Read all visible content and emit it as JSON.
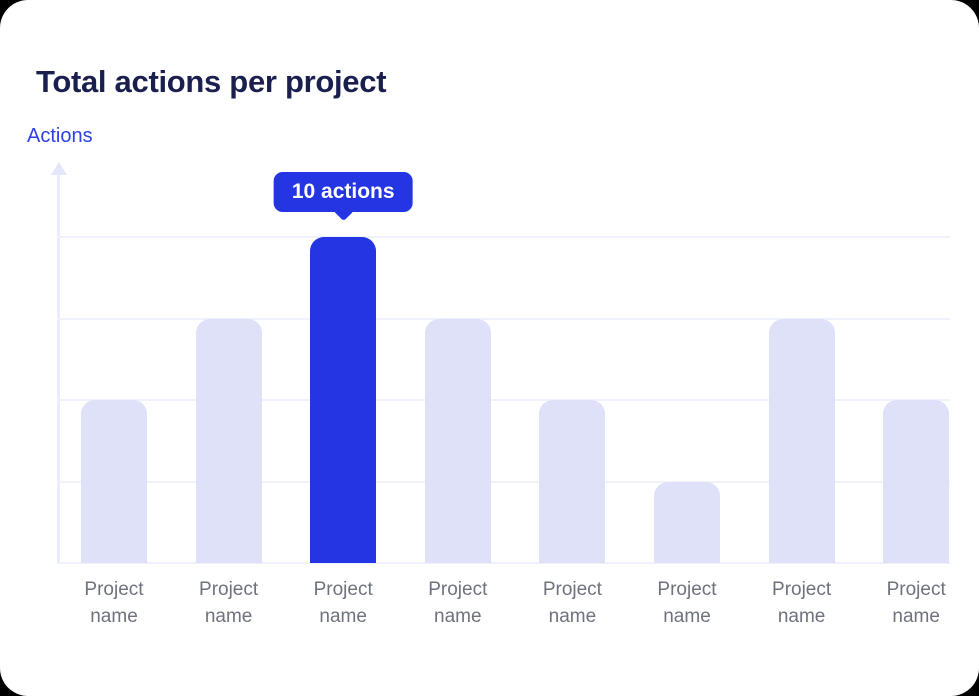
{
  "card": {
    "title": "Total actions per project",
    "y_axis_label": "Actions"
  },
  "tooltip": {
    "text": "10 actions"
  },
  "colors": {
    "bar": "#dee1f8",
    "bar_highlight": "#2436e3",
    "tooltip_bg": "#2436e3",
    "tooltip_text": "#ffffff",
    "grid": "#eff2fc",
    "axis": "#e9edfb",
    "axis_arrow": "#e2e7f9",
    "title_text": "#1a1f4e",
    "axis_label_text": "#2e40e4",
    "category_text": "#6e727d"
  },
  "chart_data": {
    "type": "bar",
    "title": "Total actions per project",
    "ylabel": "Actions",
    "xlabel": "",
    "categories": [
      "Project name",
      "Project name",
      "Project name",
      "Project name",
      "Project name",
      "Project name",
      "Project name",
      "Project name"
    ],
    "values": [
      5,
      7.5,
      10,
      7.5,
      5,
      2.5,
      7.5,
      5
    ],
    "highlight_index": 2,
    "highlight_tooltip": "10 actions",
    "ylim": [
      0,
      10
    ],
    "gridline_values": [
      0,
      2.5,
      5,
      7.5,
      10
    ],
    "grid": true,
    "legend": false
  }
}
